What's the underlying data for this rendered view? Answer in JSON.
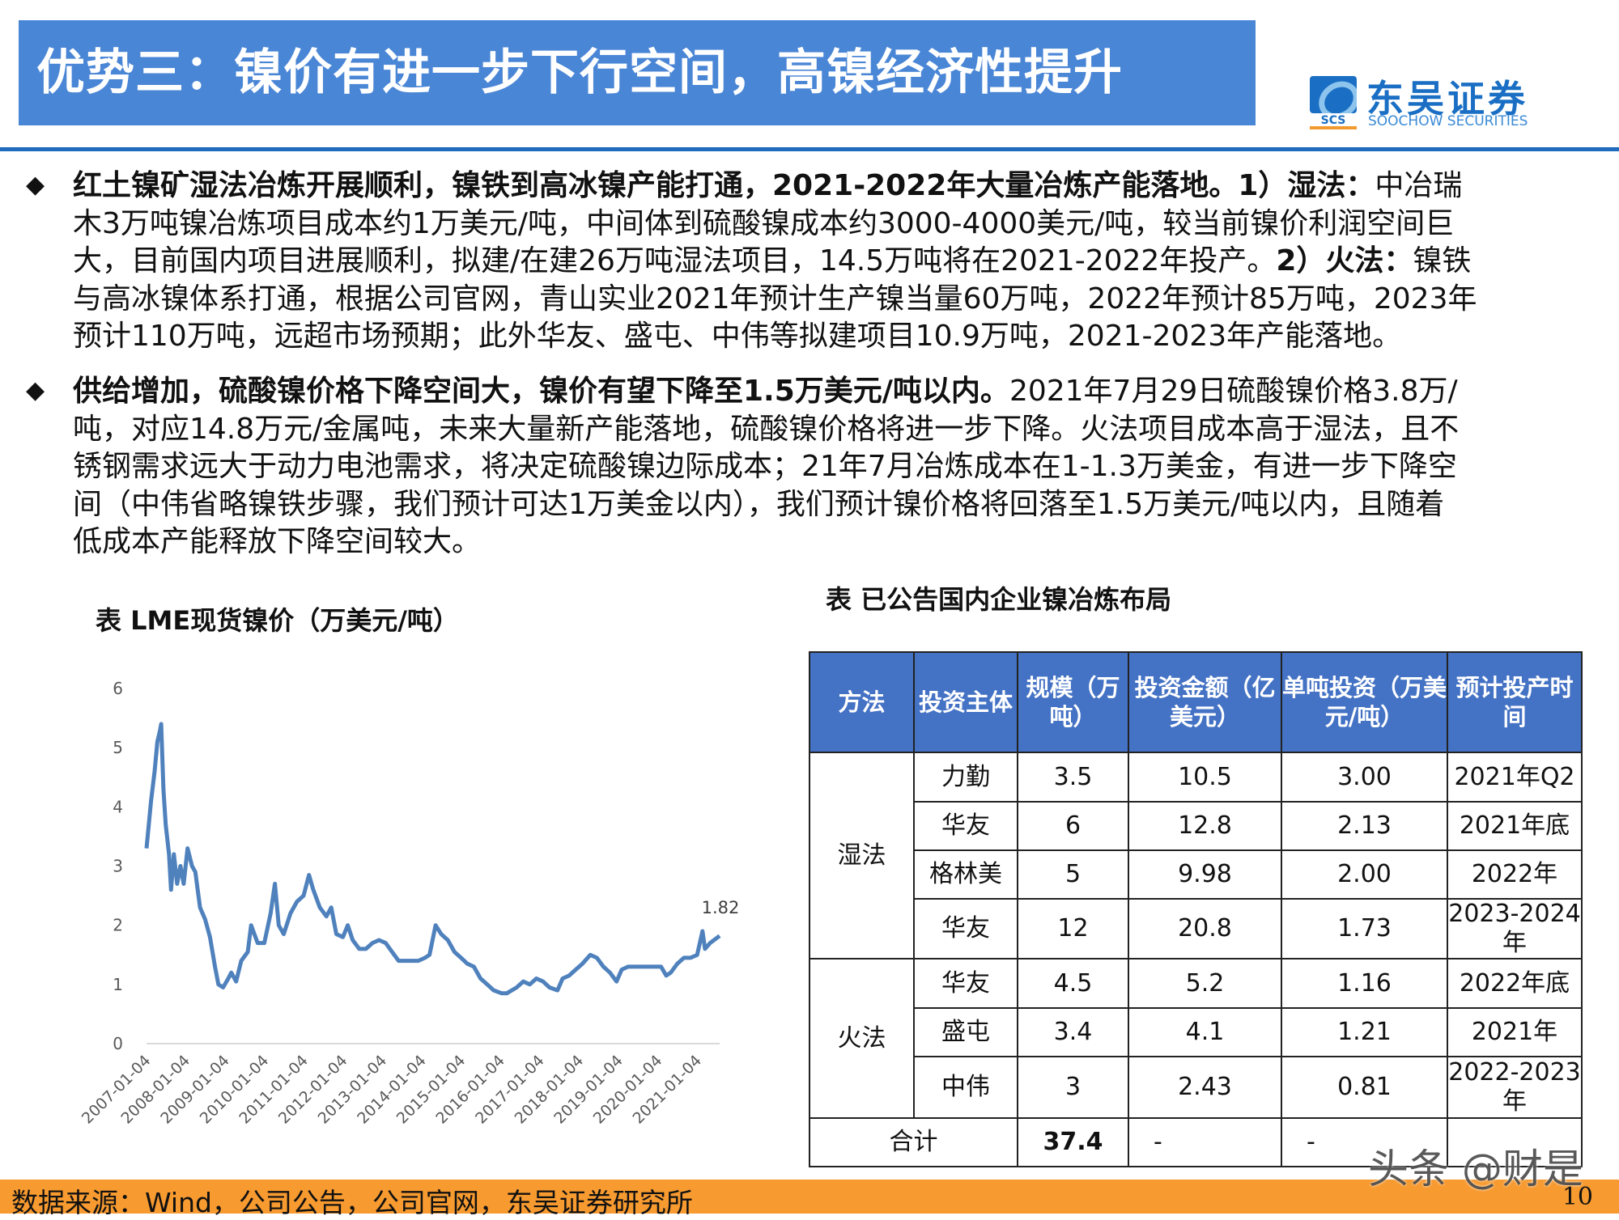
{
  "header": {
    "title": "优势三：镍价有进一步下行空间，高镍经济性提升"
  },
  "logo": {
    "cn": "东吴证券",
    "en": "SOOCHOW SECURITIES",
    "mark": "SCS",
    "colors": {
      "blue": "#1a6fc4",
      "orange": "#f29a2e"
    }
  },
  "bullets": [
    {
      "icon": "diamond-bullet-icon",
      "lines": [
        [
          {
            "b": true,
            "t": "红土镍矿湿法冶炼开展顺利，镍铁到高冰镍产能打通，2021-2022年大量冶炼产能落地。1）湿法："
          },
          {
            "b": false,
            "t": "中冶瑞"
          }
        ],
        [
          {
            "b": false,
            "t": "木3万吨镍冶炼项目成本约1万美元/吨，中间体到硫酸镍成本约3000-4000美元/吨，较当前镍价利润空间巨"
          }
        ],
        [
          {
            "b": false,
            "t": "大，目前国内项目进展顺利，拟建/在建26万吨湿法项目，14.5万吨将在2021-2022年投产。"
          },
          {
            "b": true,
            "t": "2）火法："
          },
          {
            "b": false,
            "t": "镍铁"
          }
        ],
        [
          {
            "b": false,
            "t": "与高冰镍体系打通，根据公司官网，青山实业2021年预计生产镍当量60万吨，2022年预计85万吨，2023年"
          }
        ],
        [
          {
            "b": false,
            "t": "预计110万吨，远超市场预期；此外华友、盛屯、中伟等拟建项目10.9万吨，2021-2023年产能落地。"
          }
        ]
      ]
    },
    {
      "icon": "diamond-bullet-icon",
      "lines": [
        [
          {
            "b": true,
            "t": "供给增加，硫酸镍价格下降空间大，镍价有望下降至1.5万美元/吨以内。"
          },
          {
            "b": false,
            "t": "2021年7月29日硫酸镍价格3.8万/"
          }
        ],
        [
          {
            "b": false,
            "t": "吨，对应14.8万元/金属吨，未来大量新产能落地，硫酸镍价格将进一步下降。火法项目成本高于湿法，且不"
          }
        ],
        [
          {
            "b": false,
            "t": "锈钢需求远大于动力电池需求，将决定硫酸镍边际成本；21年7月冶炼成本在1-1.3万美金，有进一步下降空"
          }
        ],
        [
          {
            "b": false,
            "t": "间（中伟省略镍铁步骤，我们预计可达1万美金以内），我们预计镍价格将回落至1.5万美元/吨以内，且随着"
          }
        ],
        [
          {
            "b": false,
            "t": "低成本产能释放下降空间较大。"
          }
        ]
      ]
    }
  ],
  "chart_data": {
    "type": "line",
    "title": "表 LME现货镍价（万美元/吨）",
    "xlabel": "",
    "ylabel": "",
    "ylim": [
      0,
      6
    ],
    "yticks": [
      "0",
      "1",
      "2",
      "3",
      "4",
      "5",
      "6"
    ],
    "xticks": [
      "2007-01-04",
      "2008-01-04",
      "2009-01-04",
      "2010-01-04",
      "2011-01-04",
      "2012-01-04",
      "2013-01-04",
      "2014-01-04",
      "2015-01-04",
      "2016-01-04",
      "2017-01-04",
      "2018-01-04",
      "2019-01-04",
      "2020-01-04",
      "2021-01-04"
    ],
    "grid": false,
    "color": "#4f81bd",
    "end_label": "1.82",
    "series": [
      {
        "x": [
          "2007-01-04",
          "2007-02-15",
          "2007-03-20",
          "2007-04-15",
          "2007-05-10",
          "2007-05-20",
          "2007-06-10",
          "2007-07-01",
          "2007-08-01",
          "2007-08-20",
          "2007-09-15",
          "2007-10-15",
          "2007-11-15",
          "2007-12-15",
          "2008-01-20",
          "2008-03-01",
          "2008-04-01",
          "2008-05-15",
          "2008-07-01",
          "2008-08-15",
          "2008-10-01",
          "2008-11-01",
          "2008-12-15",
          "2009-02-01",
          "2009-03-01",
          "2009-04-15",
          "2009-06-01",
          "2009-08-01",
          "2009-09-01",
          "2009-11-01",
          "2010-01-01",
          "2010-03-01",
          "2010-04-10",
          "2010-05-15",
          "2010-07-01",
          "2010-09-01",
          "2010-11-01",
          "2011-01-01",
          "2011-02-20",
          "2011-04-01",
          "2011-06-01",
          "2011-08-01",
          "2011-09-15",
          "2011-11-01",
          "2012-01-01",
          "2012-02-15",
          "2012-04-01",
          "2012-06-01",
          "2012-08-01",
          "2012-10-01",
          "2012-12-01",
          "2013-02-01",
          "2013-04-01",
          "2013-06-01",
          "2013-09-01",
          "2013-12-01",
          "2014-02-01",
          "2014-03-15",
          "2014-05-10",
          "2014-07-01",
          "2014-09-01",
          "2014-11-01",
          "2015-01-01",
          "2015-03-01",
          "2015-05-01",
          "2015-07-01",
          "2015-09-01",
          "2015-11-01",
          "2016-01-15",
          "2016-03-01",
          "2016-06-01",
          "2016-08-01",
          "2016-10-01",
          "2016-12-01",
          "2017-02-01",
          "2017-04-01",
          "2017-06-15",
          "2017-08-01",
          "2017-10-01",
          "2017-12-01",
          "2018-02-01",
          "2018-04-15",
          "2018-06-15",
          "2018-08-15",
          "2018-10-15",
          "2018-12-15",
          "2019-02-01",
          "2019-04-01",
          "2019-06-01",
          "2019-08-01",
          "2019-10-01",
          "2019-12-01",
          "2020-02-01",
          "2020-03-20",
          "2020-05-01",
          "2020-07-01",
          "2020-09-01",
          "2020-11-01",
          "2021-01-01",
          "2021-02-20",
          "2021-03-15",
          "2021-05-01",
          "2021-07-29"
        ],
        "y": [
          3.3,
          4.1,
          4.6,
          5.1,
          5.3,
          5.4,
          4.3,
          3.7,
          3.2,
          2.6,
          3.2,
          2.7,
          3.0,
          2.7,
          3.3,
          3.0,
          2.9,
          2.3,
          2.1,
          1.8,
          1.3,
          1.0,
          0.95,
          1.1,
          1.2,
          1.05,
          1.4,
          1.55,
          2.0,
          1.7,
          1.7,
          2.2,
          2.7,
          2.0,
          1.85,
          2.2,
          2.4,
          2.5,
          2.85,
          2.6,
          2.3,
          2.15,
          2.3,
          1.85,
          1.8,
          2.0,
          1.75,
          1.6,
          1.6,
          1.7,
          1.75,
          1.7,
          1.55,
          1.4,
          1.4,
          1.4,
          1.45,
          1.5,
          2.0,
          1.85,
          1.75,
          1.55,
          1.45,
          1.35,
          1.3,
          1.1,
          1.0,
          0.9,
          0.85,
          0.85,
          0.95,
          1.05,
          1.0,
          1.1,
          1.05,
          0.95,
          0.9,
          1.1,
          1.15,
          1.25,
          1.35,
          1.5,
          1.45,
          1.3,
          1.2,
          1.05,
          1.25,
          1.3,
          1.3,
          1.3,
          1.3,
          1.3,
          1.3,
          1.15,
          1.2,
          1.35,
          1.45,
          1.45,
          1.5,
          1.9,
          1.6,
          1.7,
          1.82
        ]
      }
    ]
  },
  "table": {
    "title": "表 已公告国内企业镍冶炼布局",
    "headers": [
      "方法",
      "投资主体",
      "规模（万吨）",
      "投资金额（亿美元）",
      "单吨投资（万美元/吨）",
      "预计投产时间"
    ],
    "groups": [
      {
        "method": "湿法",
        "rows": [
          [
            "力勤",
            "3.5",
            "10.5",
            "3.00",
            "2021年Q2"
          ],
          [
            "华友",
            "6",
            "12.8",
            "2.13",
            "2021年底"
          ],
          [
            "格林美",
            "5",
            "9.98",
            "2.00",
            "2022年"
          ],
          [
            "华友",
            "12",
            "20.8",
            "1.73",
            "2023-2024年"
          ]
        ]
      },
      {
        "method": "火法",
        "rows": [
          [
            "华友",
            "4.5",
            "5.2",
            "1.16",
            "2022年底"
          ],
          [
            "盛屯",
            "3.4",
            "4.1",
            "1.21",
            "2021年"
          ],
          [
            "中伟",
            "3",
            "2.43",
            "0.81",
            "2022-2023年"
          ]
        ]
      }
    ],
    "total": {
      "label": "合计",
      "scale": "37.4",
      "amount": "-",
      "unit": "-",
      "time": ""
    },
    "header_color": "#4472c4"
  },
  "footer": {
    "source": "数据来源：Wind，公司公告，公司官网，东吴证券研究所",
    "page": "10",
    "color": "#f79a30"
  },
  "watermark": "头条 @财是"
}
